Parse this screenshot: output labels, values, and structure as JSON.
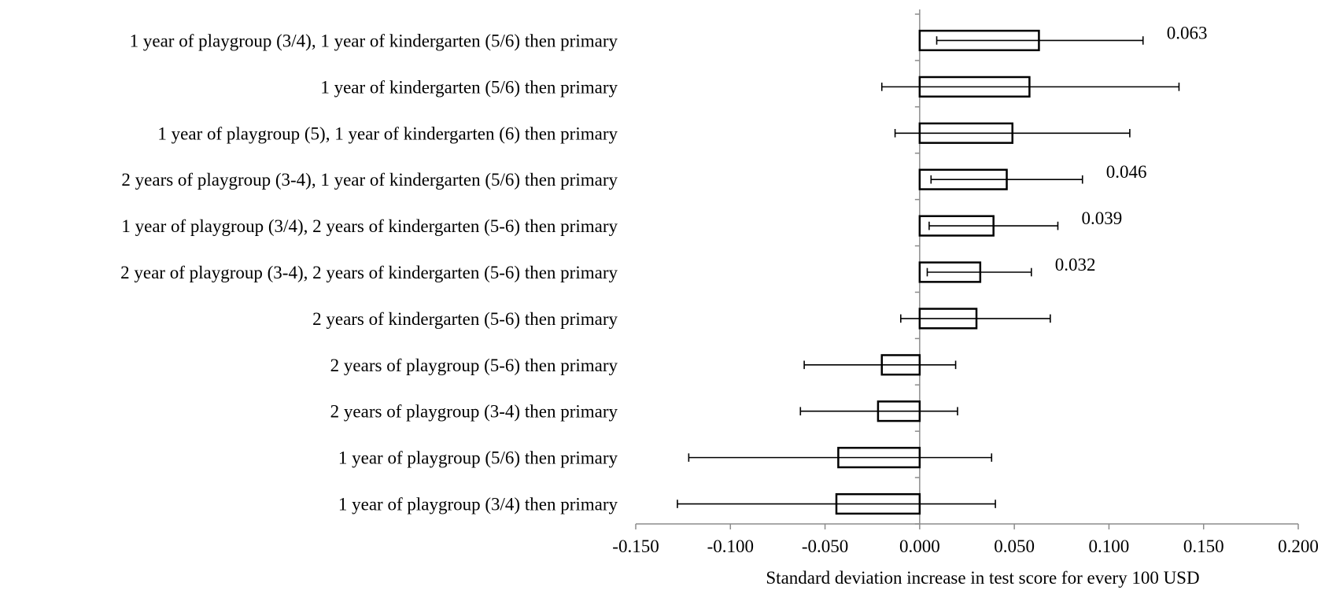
{
  "chart_data": {
    "type": "bar",
    "orientation": "horizontal",
    "categories": [
      "1 year of playgroup (3/4), 1 year of kindergarten (5/6) then primary",
      "1 year of kindergarten (5/6) then primary",
      "1 year of playgroup (5), 1 year of kindergarten (6) then primary",
      "2 years of playgroup (3-4), 1 year of kindergarten (5/6) then primary",
      "1 year of playgroup (3/4), 2 years of kindergarten (5-6) then primary",
      "2 year of playgroup (3-4), 2 years of kindergarten (5-6) then primary",
      "2 years of kindergarten (5-6) then primary",
      "2 years of playgroup (5-6) then primary",
      "2 years of playgroup (3-4) then primary",
      "1 year of playgroup (5/6) then primary",
      "1 year of playgroup (3/4) then primary"
    ],
    "values": [
      0.063,
      0.058,
      0.049,
      0.046,
      0.039,
      0.032,
      0.03,
      -0.02,
      -0.022,
      -0.043,
      -0.044
    ],
    "error_low": [
      0.009,
      -0.02,
      -0.013,
      0.006,
      0.005,
      0.004,
      -0.01,
      -0.061,
      -0.063,
      -0.122,
      -0.128
    ],
    "error_high": [
      0.118,
      0.137,
      0.111,
      0.086,
      0.073,
      0.059,
      0.069,
      0.019,
      0.02,
      0.038,
      0.04
    ],
    "data_labels": [
      "0.063",
      "",
      "",
      "0.046",
      "0.039",
      "0.032",
      "",
      "",
      "",
      "",
      ""
    ],
    "x_ticks": [
      "-0.150",
      "-0.100",
      "-0.050",
      "0.000",
      "0.050",
      "0.100",
      "0.150",
      "0.200"
    ],
    "xlim": [
      -0.15,
      0.2
    ],
    "xlabel": "Standard deviation increase in test score for every 100 USD",
    "ylabel": "",
    "title": "",
    "grid": false,
    "legend": "none",
    "colors": {
      "bar_fill": "#ffffff",
      "bar_stroke": "#000000",
      "axis": "#8c8c8c",
      "error_bar": "#000000"
    }
  }
}
